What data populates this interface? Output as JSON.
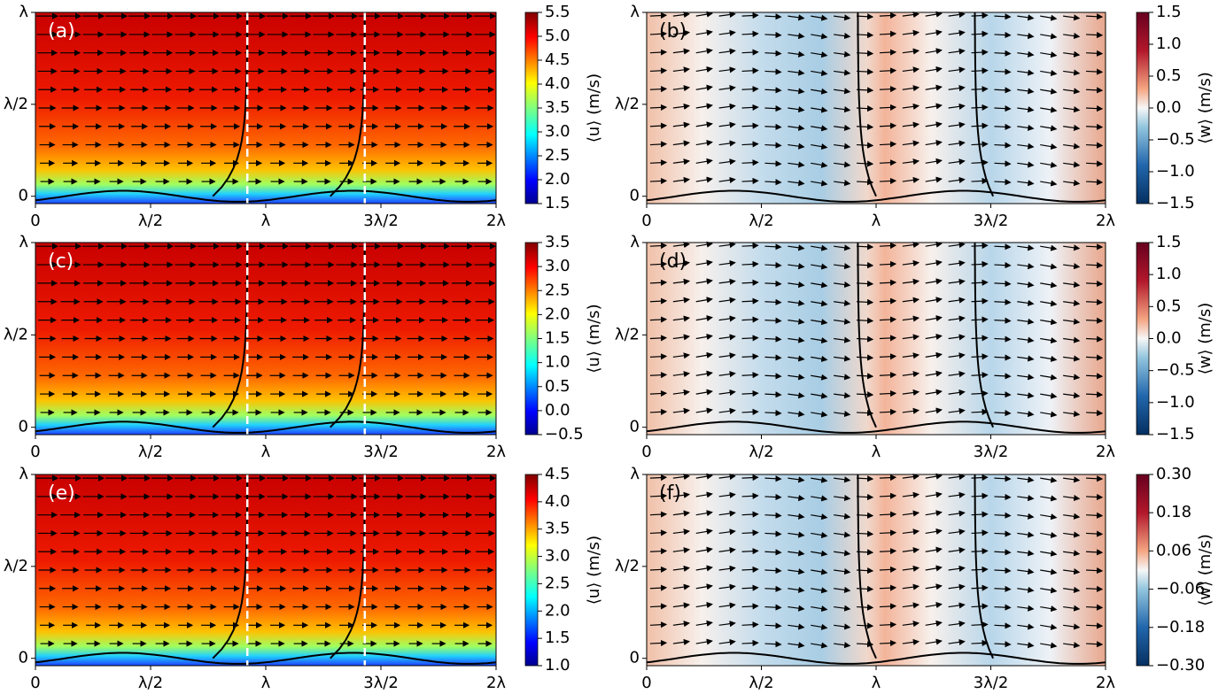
{
  "chart_data": [
    {
      "type": "contour",
      "panel_label": "(a)",
      "xlim": [
        0,
        2
      ],
      "ylim": [
        -0.04,
        1
      ],
      "xticks": [
        0,
        {
          "value": 0.5,
          "label": "λ/2"
        },
        {
          "value": 1,
          "label": "λ"
        },
        {
          "value": 1.5,
          "label": "3λ/2"
        },
        {
          "value": 2,
          "label": "2λ"
        }
      ],
      "yticks": [
        0,
        {
          "value": 0.5,
          "label": "λ/2"
        },
        {
          "value": 1,
          "label": "λ"
        }
      ],
      "colormap": "jet",
      "colorbar_label": "⟨u⟩ (m/s)",
      "clim": [
        1.5,
        5.5
      ],
      "cticks": [
        1.5,
        {
          "value": 2,
          "label": "2.0"
        },
        2.5,
        {
          "value": 3,
          "label": "3.0"
        },
        3.5,
        {
          "value": 4,
          "label": "4.0"
        },
        4.5,
        {
          "value": 5,
          "label": "5.0"
        },
        5.5
      ]
    },
    {
      "type": "contour",
      "panel_label": "(b)",
      "xlim": [
        0,
        2
      ],
      "ylim": [
        -0.04,
        1
      ],
      "xticks": [
        0,
        {
          "value": 0.5,
          "label": "λ/2"
        },
        {
          "value": 1,
          "label": "λ"
        },
        {
          "value": 1.5,
          "label": "3λ/2"
        },
        {
          "value": 2,
          "label": "2λ"
        }
      ],
      "yticks": [
        0,
        {
          "value": 0.5,
          "label": "λ/2"
        },
        {
          "value": 1,
          "label": "λ"
        }
      ],
      "colormap": "RdBu_r",
      "colorbar_label": "⟨w⟩ (m/s)",
      "clim": [
        -1.5,
        1.5
      ],
      "cticks": [
        {
          "value": -1.5,
          "label": "−1.5"
        },
        {
          "value": -1,
          "label": "−1.0"
        },
        {
          "value": -0.5,
          "label": "−0.5"
        },
        {
          "value": 0,
          "label": "0.0"
        },
        0.5,
        {
          "value": 1,
          "label": "1.0"
        },
        1.5
      ]
    },
    {
      "type": "contour",
      "panel_label": "(c)",
      "xlim": [
        0,
        2
      ],
      "ylim": [
        -0.04,
        1
      ],
      "xticks": [
        0,
        {
          "value": 0.5,
          "label": "λ/2"
        },
        {
          "value": 1,
          "label": "λ"
        },
        {
          "value": 1.5,
          "label": "3λ/2"
        },
        {
          "value": 2,
          "label": "2λ"
        }
      ],
      "yticks": [
        0,
        {
          "value": 0.5,
          "label": "λ/2"
        },
        {
          "value": 1,
          "label": "λ"
        }
      ],
      "colormap": "jet",
      "colorbar_label": "⟨u⟩ (m/s)",
      "clim": [
        -0.5,
        3.5
      ],
      "cticks": [
        {
          "value": -0.5,
          "label": "−0.5"
        },
        {
          "value": 0,
          "label": "0.0"
        },
        0.5,
        {
          "value": 1,
          "label": "1.0"
        },
        1.5,
        {
          "value": 2,
          "label": "2.0"
        },
        2.5,
        {
          "value": 3,
          "label": "3.0"
        },
        3.5
      ]
    },
    {
      "type": "contour",
      "panel_label": "(d)",
      "xlim": [
        0,
        2
      ],
      "ylim": [
        -0.04,
        1
      ],
      "xticks": [
        0,
        {
          "value": 0.5,
          "label": "λ/2"
        },
        {
          "value": 1,
          "label": "λ"
        },
        {
          "value": 1.5,
          "label": "3λ/2"
        },
        {
          "value": 2,
          "label": "2λ"
        }
      ],
      "yticks": [
        0,
        {
          "value": 0.5,
          "label": "λ/2"
        },
        {
          "value": 1,
          "label": "λ"
        }
      ],
      "colormap": "RdBu_r",
      "colorbar_label": "⟨w⟩ (m/s)",
      "clim": [
        -1.5,
        1.5
      ],
      "cticks": [
        {
          "value": -1.5,
          "label": "−1.5"
        },
        {
          "value": -1,
          "label": "−1.0"
        },
        {
          "value": -0.5,
          "label": "−0.5"
        },
        {
          "value": 0,
          "label": "0.0"
        },
        0.5,
        {
          "value": 1,
          "label": "1.0"
        },
        1.5
      ]
    },
    {
      "type": "contour",
      "panel_label": "(e)",
      "xlim": [
        0,
        2
      ],
      "ylim": [
        -0.04,
        1
      ],
      "xticks": [
        0,
        {
          "value": 0.5,
          "label": "λ/2"
        },
        {
          "value": 1,
          "label": "λ"
        },
        {
          "value": 1.5,
          "label": "3λ/2"
        },
        {
          "value": 2,
          "label": "2λ"
        }
      ],
      "yticks": [
        0,
        {
          "value": 0.5,
          "label": "λ/2"
        },
        {
          "value": 1,
          "label": "λ"
        }
      ],
      "colormap": "jet",
      "colorbar_label": "⟨u⟩ (m/s)",
      "clim": [
        1,
        4.5
      ],
      "cticks": [
        {
          "value": 1,
          "label": "1.0"
        },
        1.5,
        {
          "value": 2,
          "label": "2.0"
        },
        2.5,
        {
          "value": 3,
          "label": "3.0"
        },
        3.5,
        {
          "value": 4,
          "label": "4.0"
        },
        4.5
      ]
    },
    {
      "type": "contour",
      "panel_label": "(f)",
      "xlim": [
        0,
        2
      ],
      "ylim": [
        -0.04,
        1
      ],
      "xticks": [
        0,
        {
          "value": 0.5,
          "label": "λ/2"
        },
        {
          "value": 1,
          "label": "λ"
        },
        {
          "value": 1.5,
          "label": "3λ/2"
        },
        {
          "value": 2,
          "label": "2λ"
        }
      ],
      "yticks": [
        0,
        {
          "value": 0.5,
          "label": "λ/2"
        },
        {
          "value": 1,
          "label": "λ"
        }
      ],
      "colormap": "RdBu_r",
      "colorbar_label": "⟨w⟩ (m/s)",
      "clim": [
        -0.3,
        0.3
      ],
      "cticks": [
        {
          "value": -0.3,
          "label": "−0.30"
        },
        {
          "value": -0.18,
          "label": "−0.18"
        },
        {
          "value": -0.06,
          "label": "−0.06"
        },
        {
          "value": 0.06,
          "label": "0.06"
        },
        {
          "value": 0.18,
          "label": "0.18"
        },
        {
          "value": 0.3,
          "label": "0.30"
        }
      ]
    }
  ]
}
